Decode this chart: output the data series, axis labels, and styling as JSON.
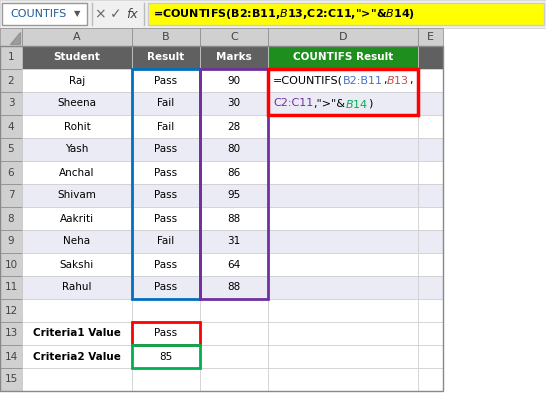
{
  "formula_bar_text": "=COUNTIFS(B2:B11,$B$13,C2:C11,\">\"&$B$14)",
  "name_box": "COUNTIFS",
  "header_row": [
    "Student",
    "Result",
    "Marks",
    "COUNTIFS Result"
  ],
  "data_rows": [
    [
      "Raj",
      "Pass",
      "90"
    ],
    [
      "Sheena",
      "Fail",
      "30"
    ],
    [
      "Rohit",
      "Fail",
      "28"
    ],
    [
      "Yash",
      "Pass",
      "80"
    ],
    [
      "Anchal",
      "Pass",
      "86"
    ],
    [
      "Shivam",
      "Pass",
      "95"
    ],
    [
      "Aakriti",
      "Pass",
      "88"
    ],
    [
      "Neha",
      "Fail",
      "31"
    ],
    [
      "Sakshi",
      "Pass",
      "64"
    ],
    [
      "Rahul",
      "Pass",
      "88"
    ]
  ],
  "criteria_rows": [
    [
      "Criteria1 Value",
      "Pass"
    ],
    [
      "Criteria2 Value",
      "85"
    ]
  ],
  "header_bg": "#1e8f1e",
  "header_fg": "#ffffff",
  "data_header_bg": "#606060",
  "data_header_fg": "#ffffff",
  "col_header_bg": "#d0d0d0",
  "col_header_fg": "#444444",
  "row_num_bg": "#d0d0d0",
  "cell_bg_white": "#ffffff",
  "cell_bg_light": "#ebebf5",
  "formula_bar_bg": "#ffff00",
  "toolbar_bg": "#f0f0f0",
  "blue_border": "#0070c0",
  "purple_border": "#7030a0",
  "red_border": "#ff0000",
  "green_border": "#00b050",
  "formula_text_black": "#000000",
  "formula_text_blue": "#4472c4",
  "formula_text_pink": "#c0504d",
  "formula_text_purple": "#7030a0",
  "formula_text_green": "#00b050",
  "formula_line1_segs": [
    [
      "=COUNTIFS(",
      "#000000"
    ],
    [
      "B2:B11",
      "#4472c4"
    ],
    [
      ",",
      "#000000"
    ],
    [
      "$B$13",
      "#c0504d"
    ],
    [
      ",",
      "#000000"
    ]
  ],
  "formula_line2_segs": [
    [
      "C2:C11",
      "#7030a0"
    ],
    [
      ",\">\"&",
      "#000000"
    ],
    [
      "$B$14",
      "#00b050"
    ],
    [
      ")",
      "#000000"
    ]
  ]
}
